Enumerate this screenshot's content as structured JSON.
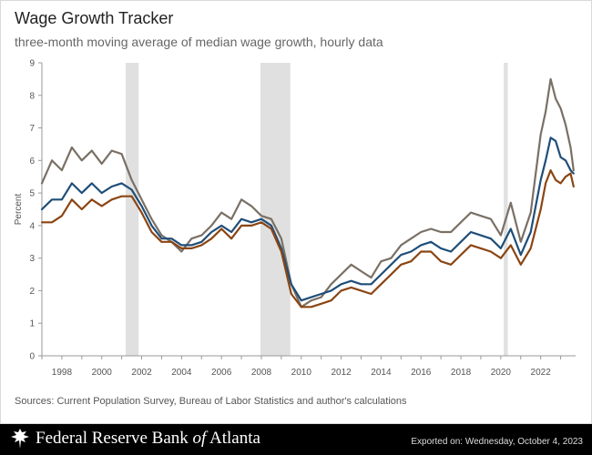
{
  "title": "Wage Growth Tracker",
  "subtitle": "three-month moving average of median wage growth, hourly data",
  "source": "Sources: Current Population Survey, Bureau of Labor Statistics and author's calculations",
  "footer": {
    "logo_prefix": "Federal Reserve Bank ",
    "logo_of": "of",
    "logo_suffix": " Atlanta",
    "exported": "Exported on: Wednesday, October 4, 2023",
    "eagle_icon": "eagle-icon"
  },
  "colors": {
    "overall": "#1f4e79",
    "lower": "#8b4513",
    "upper": "#7a7065",
    "recession": "#e0e0e0",
    "axis": "#999999"
  },
  "chart_data": {
    "type": "line",
    "ylabel": "Percent",
    "xlim": [
      1997,
      2023.75
    ],
    "ylim": [
      0,
      9
    ],
    "yticks": [
      0,
      1,
      2,
      3,
      4,
      5,
      6,
      7,
      8,
      9
    ],
    "xticks": [
      1998,
      2000,
      2002,
      2004,
      2006,
      2008,
      2010,
      2012,
      2014,
      2016,
      2018,
      2020,
      2022
    ],
    "recessions": [
      [
        2001.2,
        2001.85
      ],
      [
        2007.95,
        2009.45
      ],
      [
        2020.15,
        2020.35
      ]
    ],
    "series": [
      {
        "key": "upper",
        "x": [
          1997.0,
          1997.5,
          1998.0,
          1998.5,
          1999.0,
          1999.5,
          2000.0,
          2000.5,
          2001.0,
          2001.5,
          2002.0,
          2002.5,
          2003.0,
          2003.5,
          2004.0,
          2004.5,
          2005.0,
          2005.5,
          2006.0,
          2006.5,
          2007.0,
          2007.5,
          2008.0,
          2008.5,
          2009.0,
          2009.5,
          2010.0,
          2010.5,
          2011.0,
          2011.5,
          2012.0,
          2012.5,
          2013.0,
          2013.5,
          2014.0,
          2014.5,
          2015.0,
          2015.5,
          2016.0,
          2016.5,
          2017.0,
          2017.5,
          2018.0,
          2018.5,
          2019.0,
          2019.5,
          2020.0,
          2020.5,
          2021.0,
          2021.5,
          2022.0,
          2022.25,
          2022.5,
          2022.75,
          2023.0,
          2023.25,
          2023.5,
          2023.65
        ],
        "values": [
          5.3,
          6.0,
          5.7,
          6.4,
          6.0,
          6.3,
          5.9,
          6.3,
          6.2,
          5.4,
          4.8,
          4.2,
          3.7,
          3.5,
          3.2,
          3.6,
          3.7,
          4.0,
          4.4,
          4.2,
          4.8,
          4.6,
          4.3,
          4.2,
          3.6,
          2.2,
          1.5,
          1.7,
          1.8,
          2.2,
          2.5,
          2.8,
          2.6,
          2.4,
          2.9,
          3.0,
          3.4,
          3.6,
          3.8,
          3.9,
          3.8,
          3.8,
          4.1,
          4.4,
          4.3,
          4.2,
          3.7,
          4.7,
          3.5,
          4.4,
          6.8,
          7.5,
          8.5,
          7.9,
          7.6,
          7.1,
          6.4,
          5.7
        ]
      },
      {
        "key": "overall",
        "x": [
          1997.0,
          1997.5,
          1998.0,
          1998.5,
          1999.0,
          1999.5,
          2000.0,
          2000.5,
          2001.0,
          2001.5,
          2002.0,
          2002.5,
          2003.0,
          2003.5,
          2004.0,
          2004.5,
          2005.0,
          2005.5,
          2006.0,
          2006.5,
          2007.0,
          2007.5,
          2008.0,
          2008.5,
          2009.0,
          2009.5,
          2010.0,
          2010.5,
          2011.0,
          2011.5,
          2012.0,
          2012.5,
          2013.0,
          2013.5,
          2014.0,
          2014.5,
          2015.0,
          2015.5,
          2016.0,
          2016.5,
          2017.0,
          2017.5,
          2018.0,
          2018.5,
          2019.0,
          2019.5,
          2020.0,
          2020.5,
          2021.0,
          2021.5,
          2022.0,
          2022.25,
          2022.5,
          2022.75,
          2023.0,
          2023.25,
          2023.5,
          2023.65
        ],
        "values": [
          4.5,
          4.8,
          4.8,
          5.3,
          5.0,
          5.3,
          5.0,
          5.2,
          5.3,
          5.1,
          4.6,
          4.0,
          3.6,
          3.6,
          3.4,
          3.4,
          3.5,
          3.8,
          4.0,
          3.8,
          4.2,
          4.1,
          4.2,
          4.0,
          3.3,
          2.2,
          1.7,
          1.8,
          1.9,
          2.0,
          2.2,
          2.3,
          2.2,
          2.2,
          2.5,
          2.8,
          3.1,
          3.2,
          3.4,
          3.5,
          3.3,
          3.2,
          3.5,
          3.8,
          3.7,
          3.6,
          3.3,
          3.9,
          3.1,
          3.8,
          5.4,
          6.0,
          6.7,
          6.6,
          6.1,
          6.0,
          5.7,
          5.6
        ]
      },
      {
        "key": "lower",
        "x": [
          1997.0,
          1997.5,
          1998.0,
          1998.5,
          1999.0,
          1999.5,
          2000.0,
          2000.5,
          2001.0,
          2001.5,
          2002.0,
          2002.5,
          2003.0,
          2003.5,
          2004.0,
          2004.5,
          2005.0,
          2005.5,
          2006.0,
          2006.5,
          2007.0,
          2007.5,
          2008.0,
          2008.5,
          2009.0,
          2009.5,
          2010.0,
          2010.5,
          2011.0,
          2011.5,
          2012.0,
          2012.5,
          2013.0,
          2013.5,
          2014.0,
          2014.5,
          2015.0,
          2015.5,
          2016.0,
          2016.5,
          2017.0,
          2017.5,
          2018.0,
          2018.5,
          2019.0,
          2019.5,
          2020.0,
          2020.5,
          2021.0,
          2021.5,
          2022.0,
          2022.25,
          2022.5,
          2022.75,
          2023.0,
          2023.25,
          2023.5,
          2023.65
        ],
        "values": [
          4.1,
          4.1,
          4.3,
          4.8,
          4.5,
          4.8,
          4.6,
          4.8,
          4.9,
          4.9,
          4.4,
          3.8,
          3.5,
          3.5,
          3.3,
          3.3,
          3.4,
          3.6,
          3.9,
          3.6,
          4.0,
          4.0,
          4.1,
          3.9,
          3.2,
          1.9,
          1.5,
          1.5,
          1.6,
          1.7,
          2.0,
          2.1,
          2.0,
          1.9,
          2.2,
          2.5,
          2.8,
          2.9,
          3.2,
          3.2,
          2.9,
          2.8,
          3.1,
          3.4,
          3.3,
          3.2,
          3.0,
          3.4,
          2.8,
          3.3,
          4.5,
          5.3,
          5.7,
          5.4,
          5.3,
          5.5,
          5.6,
          5.2
        ]
      }
    ]
  }
}
